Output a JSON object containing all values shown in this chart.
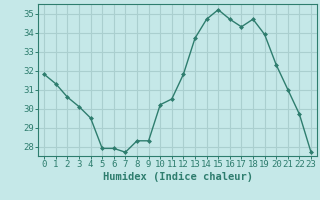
{
  "x": [
    0,
    1,
    2,
    3,
    4,
    5,
    6,
    7,
    8,
    9,
    10,
    11,
    12,
    13,
    14,
    15,
    16,
    17,
    18,
    19,
    20,
    21,
    22,
    23
  ],
  "y": [
    31.8,
    31.3,
    30.6,
    30.1,
    29.5,
    27.9,
    27.9,
    27.7,
    28.3,
    28.3,
    30.2,
    30.5,
    31.8,
    33.7,
    34.7,
    35.2,
    34.7,
    34.3,
    34.7,
    33.9,
    32.3,
    31.0,
    29.7,
    27.7
  ],
  "line_color": "#2e7d6e",
  "marker": "D",
  "markersize": 2.0,
  "linewidth": 1.0,
  "bg_color": "#c5e8e8",
  "grid_color": "#aacfcf",
  "xlabel": "Humidex (Indice chaleur)",
  "ylim": [
    27.5,
    35.5
  ],
  "xlim": [
    -0.5,
    23.5
  ],
  "yticks": [
    28,
    29,
    30,
    31,
    32,
    33,
    34,
    35
  ],
  "xticks": [
    0,
    1,
    2,
    3,
    4,
    5,
    6,
    7,
    8,
    9,
    10,
    11,
    12,
    13,
    14,
    15,
    16,
    17,
    18,
    19,
    20,
    21,
    22,
    23
  ],
  "tick_color": "#2e7d6e",
  "label_color": "#2e7d6e",
  "xlabel_fontsize": 7.5,
  "tick_fontsize": 6.5
}
